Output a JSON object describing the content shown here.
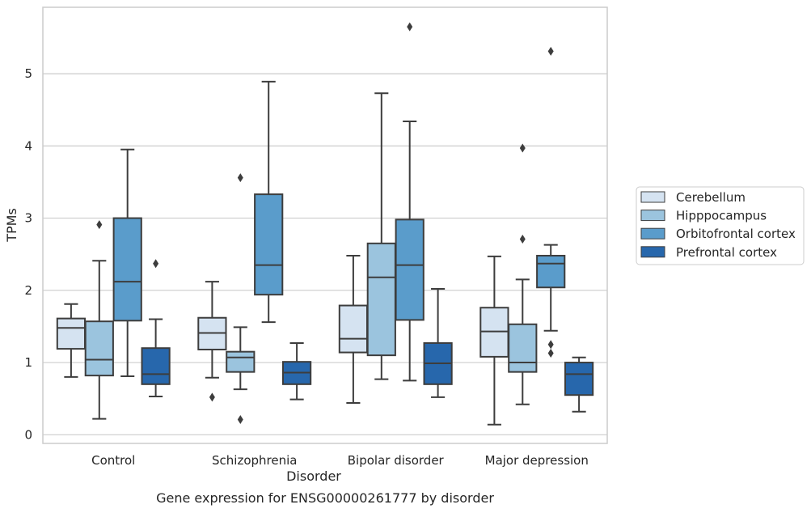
{
  "caption": "Gene expression for ENSG00000261777 by disorder",
  "chart_data": {
    "type": "box",
    "xlabel": "Disorder",
    "ylabel": "TPMs",
    "ylim": [
      -0.12,
      5.92
    ],
    "yticks": [
      0,
      1,
      2,
      3,
      4,
      5
    ],
    "grid": "horizontal",
    "legend_position": "right",
    "categories": [
      "Control",
      "Schizophrenia",
      "Bipolar disorder",
      "Major depression"
    ],
    "series": [
      {
        "name": "Cerebellum",
        "color": "#d5e3f1",
        "boxes": [
          {
            "whisker_low": 0.8,
            "q1": 1.19,
            "median": 1.48,
            "q3": 1.61,
            "whisker_high": 1.81,
            "outliers": []
          },
          {
            "whisker_low": 0.79,
            "q1": 1.18,
            "median": 1.41,
            "q3": 1.62,
            "whisker_high": 2.12,
            "outliers": [
              0.52
            ]
          },
          {
            "whisker_low": 0.44,
            "q1": 1.14,
            "median": 1.33,
            "q3": 1.79,
            "whisker_high": 2.48,
            "outliers": []
          },
          {
            "whisker_low": 0.14,
            "q1": 1.08,
            "median": 1.43,
            "q3": 1.76,
            "whisker_high": 2.47,
            "outliers": []
          }
        ]
      },
      {
        "name": "Hipppocampus",
        "color": "#9bc4de",
        "boxes": [
          {
            "whisker_low": 0.22,
            "q1": 0.82,
            "median": 1.04,
            "q3": 1.57,
            "whisker_high": 2.41,
            "outliers": [
              2.91
            ]
          },
          {
            "whisker_low": 0.63,
            "q1": 0.87,
            "median": 1.07,
            "q3": 1.15,
            "whisker_high": 1.49,
            "outliers": [
              3.56,
              0.21
            ]
          },
          {
            "whisker_low": 0.77,
            "q1": 1.1,
            "median": 2.18,
            "q3": 2.65,
            "whisker_high": 4.73,
            "outliers": []
          },
          {
            "whisker_low": 0.42,
            "q1": 0.87,
            "median": 1.0,
            "q3": 1.53,
            "whisker_high": 2.15,
            "outliers": [
              3.97,
              2.71
            ]
          }
        ]
      },
      {
        "name": "Orbitofrontal cortex",
        "color": "#5a9ccb",
        "boxes": [
          {
            "whisker_low": 0.81,
            "q1": 1.58,
            "median": 2.12,
            "q3": 3.0,
            "whisker_high": 3.95,
            "outliers": []
          },
          {
            "whisker_low": 1.56,
            "q1": 1.94,
            "median": 2.35,
            "q3": 3.33,
            "whisker_high": 4.89,
            "outliers": []
          },
          {
            "whisker_low": 0.75,
            "q1": 1.59,
            "median": 2.35,
            "q3": 2.98,
            "whisker_high": 4.34,
            "outliers": [
              5.65
            ]
          },
          {
            "whisker_low": 1.44,
            "q1": 2.04,
            "median": 2.37,
            "q3": 2.48,
            "whisker_high": 2.63,
            "outliers": [
              5.31,
              1.25,
              1.13
            ]
          }
        ]
      },
      {
        "name": "Prefrontal cortex",
        "color": "#2767ac",
        "boxes": [
          {
            "whisker_low": 0.53,
            "q1": 0.7,
            "median": 0.84,
            "q3": 1.2,
            "whisker_high": 1.6,
            "outliers": [
              2.37
            ]
          },
          {
            "whisker_low": 0.49,
            "q1": 0.7,
            "median": 0.86,
            "q3": 1.01,
            "whisker_high": 1.27,
            "outliers": []
          },
          {
            "whisker_low": 0.52,
            "q1": 0.7,
            "median": 0.99,
            "q3": 1.27,
            "whisker_high": 2.02,
            "outliers": []
          },
          {
            "whisker_low": 0.32,
            "q1": 0.55,
            "median": 0.84,
            "q3": 1.0,
            "whisker_high": 1.07,
            "outliers": []
          }
        ]
      }
    ]
  }
}
